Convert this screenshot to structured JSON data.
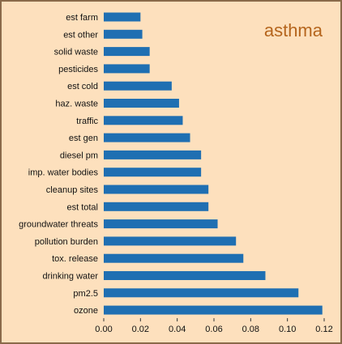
{
  "chart_data": {
    "type": "bar",
    "orientation": "horizontal",
    "title": "asthma",
    "xlabel": "",
    "ylabel": "",
    "xlim": [
      0,
      0.12
    ],
    "x_ticks": [
      "0.00",
      "0.02",
      "0.04",
      "0.06",
      "0.08",
      "0.10",
      "0.12"
    ],
    "grid": false,
    "legend": "none",
    "bar_color": "#1f6fb2",
    "background_color": "#fde0bd",
    "title_color": "#b5651d",
    "categories": [
      "est farm",
      "est other",
      "solid waste",
      "pesticides",
      "est cold",
      "haz. waste",
      "traffic",
      "est gen",
      "diesel pm",
      "imp. water bodies",
      "cleanup sites",
      "est total",
      "groundwater threats",
      "pollution burden",
      "tox. release",
      "drinking water",
      "pm2.5",
      "ozone"
    ],
    "values": [
      0.02,
      0.021,
      0.025,
      0.025,
      0.037,
      0.041,
      0.043,
      0.047,
      0.053,
      0.053,
      0.057,
      0.057,
      0.062,
      0.072,
      0.076,
      0.088,
      0.106,
      0.119
    ]
  }
}
